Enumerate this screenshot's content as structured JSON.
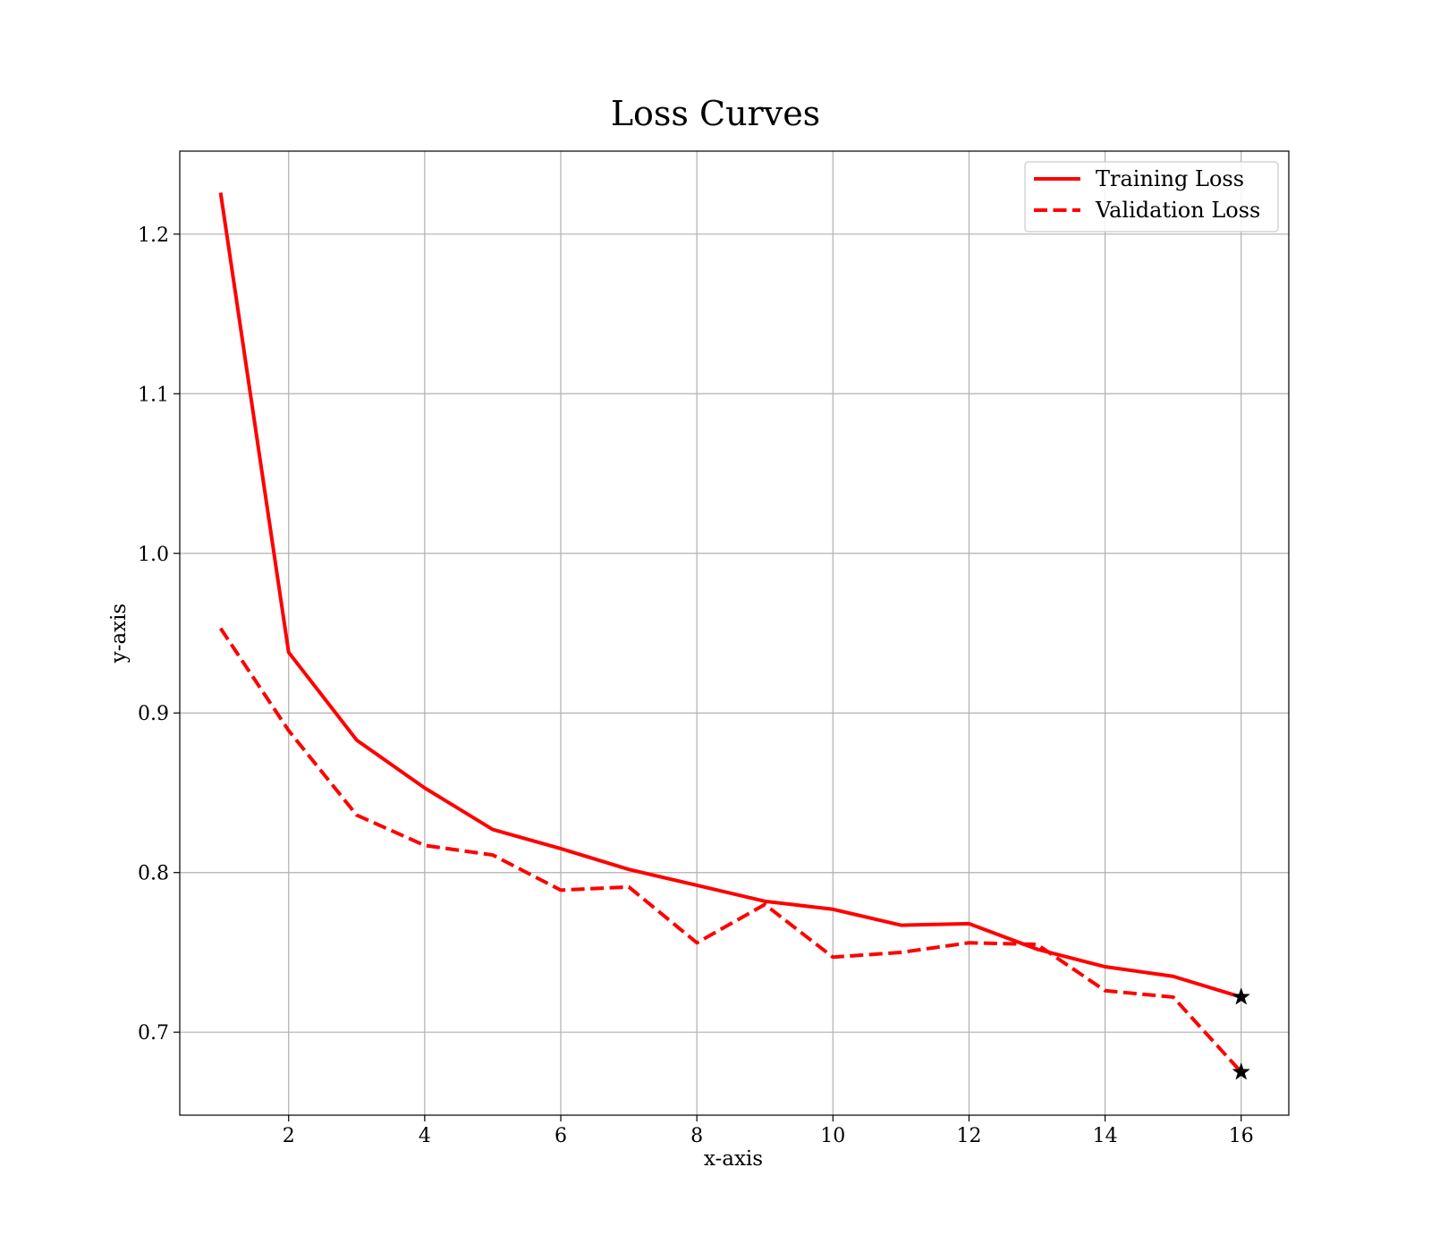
{
  "chart_data": {
    "type": "line",
    "title": "Loss Curves",
    "xlabel": "x-axis",
    "ylabel": "y-axis",
    "xlim": [
      0.4,
      16.7
    ],
    "ylim": [
      0.648,
      1.252
    ],
    "xticks": [
      2,
      4,
      6,
      8,
      10,
      12,
      14,
      16
    ],
    "xtick_labels": [
      "2",
      "4",
      "6",
      "8",
      "10",
      "12",
      "14",
      "16"
    ],
    "yticks": [
      0.7,
      0.8,
      0.9,
      1.0,
      1.1,
      1.2
    ],
    "ytick_labels": [
      "0.7",
      "0.8",
      "0.9",
      "1.0",
      "1.1",
      "1.2"
    ],
    "grid": true,
    "legend_position": "top-right",
    "x": [
      1,
      2,
      3,
      4,
      5,
      6,
      7,
      8,
      9,
      10,
      11,
      12,
      13,
      14,
      15,
      16
    ],
    "series": [
      {
        "name": "Training Loss",
        "color": "#ff0000",
        "style": "solid",
        "values": [
          1.226,
          0.938,
          0.883,
          0.853,
          0.827,
          0.815,
          0.802,
          0.792,
          0.782,
          0.777,
          0.767,
          0.768,
          0.752,
          0.741,
          0.735,
          0.722
        ]
      },
      {
        "name": "Validation Loss",
        "color": "#ff0000",
        "style": "dashed",
        "values": [
          0.953,
          0.889,
          0.836,
          0.817,
          0.811,
          0.789,
          0.791,
          0.756,
          0.78,
          0.747,
          0.75,
          0.756,
          0.755,
          0.726,
          0.722,
          0.675
        ]
      }
    ],
    "markers": [
      {
        "series": "Training Loss",
        "x": 16,
        "y": 0.722,
        "symbol": "star",
        "color": "#000000"
      },
      {
        "series": "Validation Loss",
        "x": 16,
        "y": 0.675,
        "symbol": "star",
        "color": "#000000"
      }
    ]
  }
}
